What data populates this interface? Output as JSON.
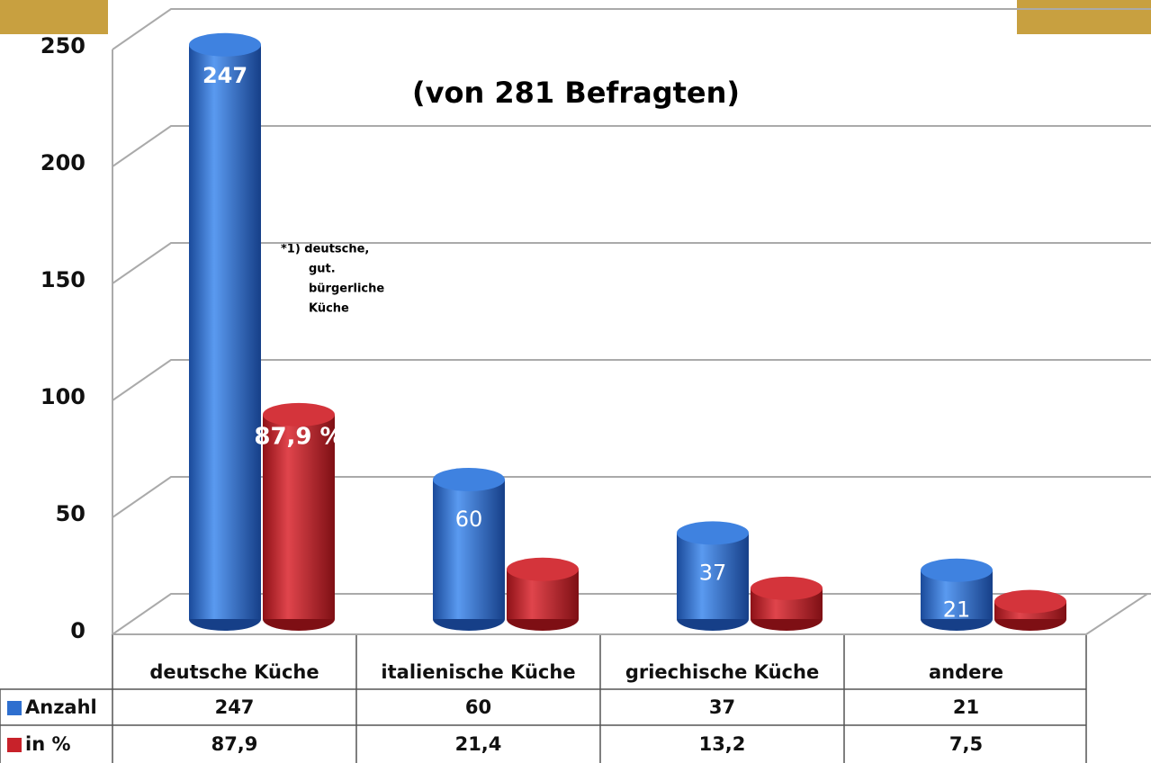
{
  "chart_data": {
    "type": "cylinder-bar",
    "subtitle": "(von 281 Befragten)",
    "footnote": [
      "*1) deutsche,",
      "gut.",
      "bürgerliche",
      "Küche"
    ],
    "categories": [
      "deutsche Küche",
      "italienische Küche",
      "griechische Küche",
      "andere"
    ],
    "series": [
      {
        "name": "Anzahl",
        "color": "#2e6fcf",
        "values": [
          247,
          60,
          37,
          21
        ]
      },
      {
        "name": "in %",
        "color": "#c8222a",
        "values": [
          87.9,
          21.4,
          13.2,
          7.5
        ],
        "value_labels": [
          "87,9",
          "21,4",
          "13,2",
          "7,5"
        ],
        "bar_labels": [
          "87,9 %",
          null,
          null,
          null
        ]
      }
    ],
    "ylim": [
      0,
      250
    ],
    "yticks": [
      0,
      50,
      100,
      150,
      200,
      250
    ],
    "grid": true,
    "data_table": true
  }
}
